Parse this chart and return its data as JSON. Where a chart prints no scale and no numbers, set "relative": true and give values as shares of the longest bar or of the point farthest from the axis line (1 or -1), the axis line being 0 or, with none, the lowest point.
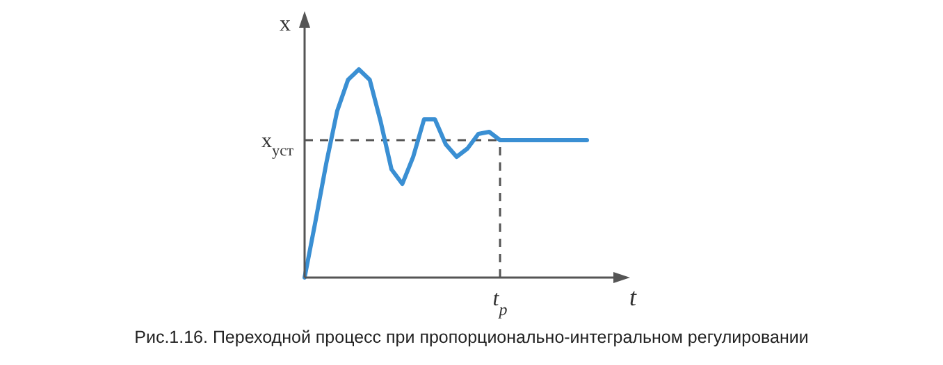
{
  "chart_data": {
    "type": "line",
    "relative": true,
    "xlabel": "t",
    "ylabel": "x",
    "categories": [
      null,
      null,
      null,
      null,
      null,
      null,
      null,
      null,
      null,
      null,
      null,
      null,
      null,
      null,
      null,
      null,
      null,
      null,
      null,
      null,
      null,
      null,
      null,
      null,
      null,
      null,
      null
    ],
    "series": [
      {
        "color": "#3a8fd3",
        "values": [
          0,
          0.27,
          0.55,
          0.8,
          0.95,
          1.0,
          0.95,
          0.75,
          0.52,
          0.45,
          0.58,
          0.76,
          0.76,
          0.64,
          0.58,
          0.62,
          0.69,
          0.7,
          0.66,
          0.66,
          0.66,
          0.66,
          0.66,
          0.66,
          0.66,
          0.66,
          0.66
        ]
      }
    ],
    "ref_lines": [
      {
        "axis": "y",
        "value": 0.66,
        "label": "x$_{уст}$",
        "line_style": "dashed",
        "color": "#555555"
      }
    ],
    "annotations": [
      "Рис.1.16. Переходной процесс при пропорционально-интегральном регулировании",
      {
        "text": "t$_{р}$"
      }
    ],
    "line_style": "solid"
  }
}
